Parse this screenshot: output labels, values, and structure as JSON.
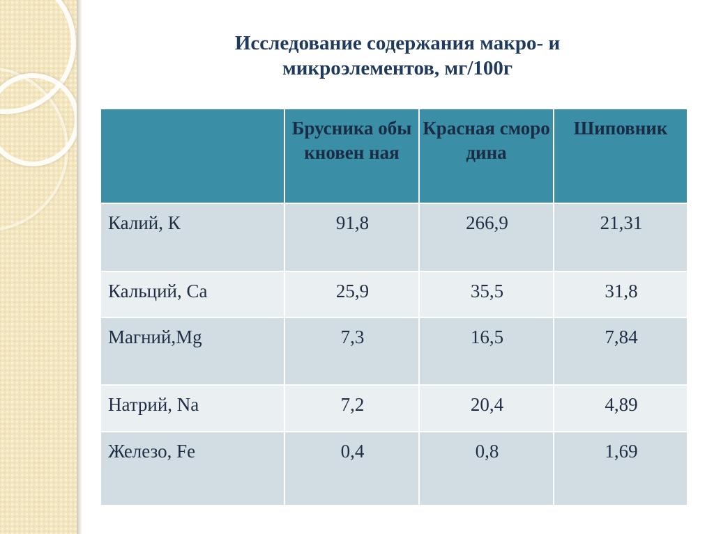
{
  "slide": {
    "title_line1": "Исследование содержания макро- и",
    "title_line2": "микроэлементов, мг/100г"
  },
  "table": {
    "headers": [
      "",
      "Брусника обыкновенная",
      "Красная смородина",
      "Шиповник"
    ],
    "header_display": [
      "",
      "Брусника обыкновен ная",
      "Красная смородина",
      "Шиповник"
    ],
    "rows": [
      {
        "element": "Калий, К",
        "values": [
          "91,8",
          "266,9",
          "21,31"
        ]
      },
      {
        "element": "Кальций, Ca",
        "values": [
          "25,9",
          "35,5",
          "31,8"
        ]
      },
      {
        "element": "Магний,Mg",
        "values": [
          "7,3",
          "16,5",
          "7,84"
        ]
      },
      {
        "element": "Натрий, Na",
        "values": [
          "7,2",
          "20,4",
          "4,89"
        ]
      },
      {
        "element": "Железо, Fe",
        "values": [
          "0,4",
          "0,8",
          "1,69"
        ]
      }
    ]
  },
  "colors": {
    "header_bg": "#3a8fa6",
    "row_dark": "#d2dde3",
    "row_light": "#eaeff2",
    "title": "#1f3a5c",
    "side_panel": "#f3e6bf"
  }
}
